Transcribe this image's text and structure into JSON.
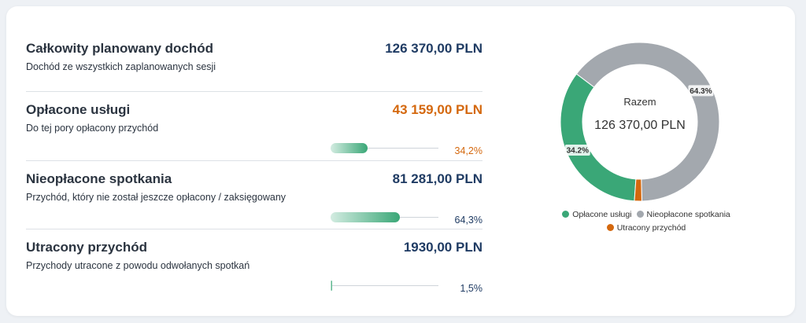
{
  "rows": [
    {
      "title": "Całkowity planowany dochód",
      "subtitle": "Dochód ze wszystkich zaplanowanych sesji",
      "amount": "126 370,00 PLN"
    },
    {
      "title": "Opłacone usługi",
      "subtitle": "Do tej pory opłacony przychód",
      "amount": "43 159,00 PLN",
      "percent": {
        "value": 34.2,
        "label": "34,2%"
      }
    },
    {
      "title": "Nieopłacone spotkania",
      "subtitle": "Przychód, który nie został jeszcze opłacony / zaksięgowany",
      "amount": "81 281,00 PLN",
      "percent": {
        "value": 64.3,
        "label": "64,3%"
      }
    },
    {
      "title": "Utracony przychód",
      "subtitle": "Przychody utracone z powodu odwołanych spotkań",
      "amount": "1930,00 PLN",
      "percent": {
        "value": 1.5,
        "label": "1,5%"
      }
    }
  ],
  "chart_data": {
    "type": "donut",
    "center_label": "Razem",
    "center_value": "126 370,00 PLN",
    "categories": [
      "Opłacone usługi",
      "Nieopłacone spotkania",
      "Utracony przychód"
    ],
    "values": [
      34.2,
      64.3,
      1.5
    ],
    "value_labels": [
      "34.2%",
      "64.3%",
      null
    ],
    "colors": [
      "#3aa777",
      "#a3a8ae",
      "#d4680e"
    ]
  }
}
